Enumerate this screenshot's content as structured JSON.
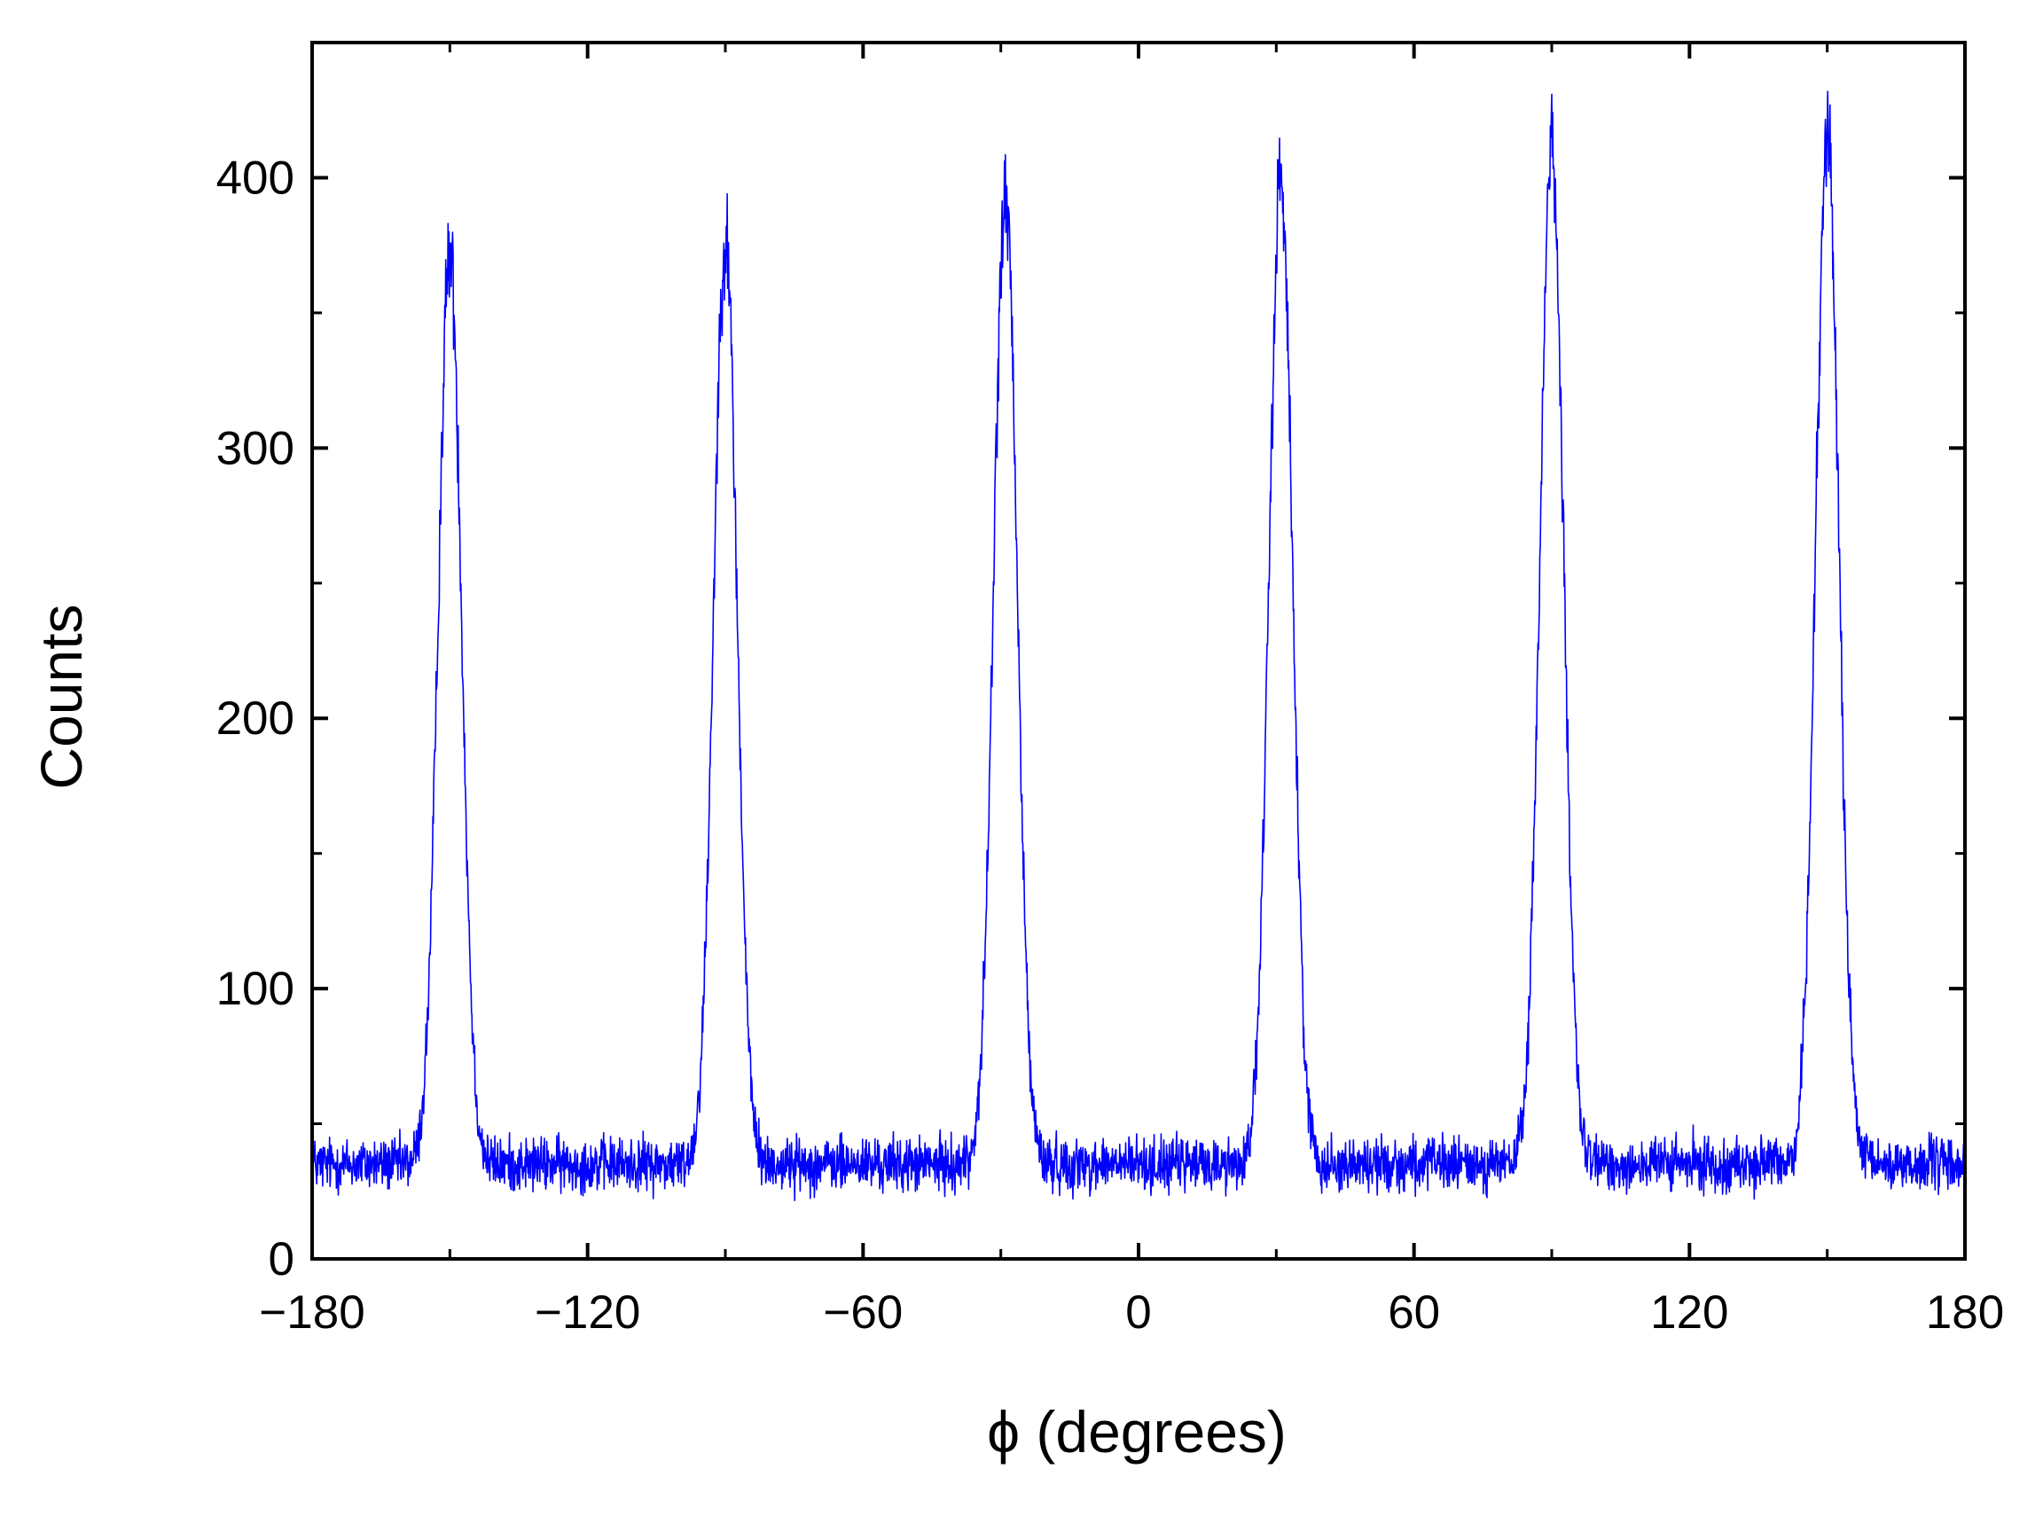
{
  "chart_data": {
    "type": "line",
    "title": "",
    "xlabel": "ϕ (degrees)",
    "ylabel": "Counts",
    "xlim": [
      -180,
      180
    ],
    "ylim": [
      0,
      450
    ],
    "xticks": [
      -180,
      -120,
      -60,
      0,
      60,
      120,
      180
    ],
    "xtick_labels": [
      "−180",
      "−120",
      "−60",
      "0",
      "60",
      "120",
      "180"
    ],
    "yticks": [
      0,
      100,
      200,
      300,
      400
    ],
    "ytick_labels": [
      "0",
      "100",
      "200",
      "300",
      "400"
    ],
    "grid": false,
    "series": [
      {
        "color": "#0000ff",
        "baseline": 35,
        "peaks": [
          {
            "x": -150,
            "y": 372
          },
          {
            "x": -90,
            "y": 378
          },
          {
            "x": -29,
            "y": 393
          },
          {
            "x": 31,
            "y": 401
          },
          {
            "x": 90,
            "y": 413
          },
          {
            "x": 150,
            "y": 416
          }
        ],
        "peak_fwhm_deg": 6
      }
    ]
  }
}
